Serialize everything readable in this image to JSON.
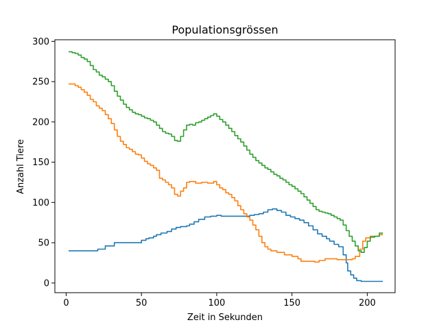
{
  "chart_data": {
    "type": "line",
    "title": "Populationsgrössen",
    "xlabel": "Zeit in Sekunden",
    "ylabel": "Anzahl Tiere",
    "xlim": [
      -7.5,
      218.5
    ],
    "ylim": [
      -12,
      302
    ],
    "xticks": [
      0,
      50,
      100,
      150,
      200
    ],
    "yticks": [
      0,
      50,
      100,
      150,
      200,
      250,
      300
    ],
    "grid": false,
    "series": [
      {
        "color": "#1f77b4",
        "points": [
          [
            2,
            40
          ],
          [
            10,
            40
          ],
          [
            20,
            40
          ],
          [
            21,
            42
          ],
          [
            25,
            42
          ],
          [
            26,
            46
          ],
          [
            30,
            46
          ],
          [
            32,
            50
          ],
          [
            40,
            50
          ],
          [
            48,
            50
          ],
          [
            50,
            53
          ],
          [
            53,
            55
          ],
          [
            55,
            56
          ],
          [
            58,
            58
          ],
          [
            60,
            60
          ],
          [
            63,
            62
          ],
          [
            67,
            64
          ],
          [
            70,
            67
          ],
          [
            73,
            69
          ],
          [
            76,
            70
          ],
          [
            80,
            71
          ],
          [
            82,
            73
          ],
          [
            85,
            76
          ],
          [
            88,
            79
          ],
          [
            92,
            82
          ],
          [
            96,
            83
          ],
          [
            100,
            84
          ],
          [
            103,
            83
          ],
          [
            106,
            83
          ],
          [
            110,
            83
          ],
          [
            114,
            83
          ],
          [
            118,
            83
          ],
          [
            122,
            84
          ],
          [
            125,
            85
          ],
          [
            128,
            86
          ],
          [
            131,
            88
          ],
          [
            134,
            91
          ],
          [
            137,
            92
          ],
          [
            140,
            90
          ],
          [
            143,
            88
          ],
          [
            146,
            84
          ],
          [
            149,
            82
          ],
          [
            152,
            80
          ],
          [
            155,
            78
          ],
          [
            158,
            75
          ],
          [
            161,
            71
          ],
          [
            164,
            66
          ],
          [
            167,
            61
          ],
          [
            170,
            58
          ],
          [
            173,
            55
          ],
          [
            175,
            52
          ],
          [
            178,
            48
          ],
          [
            181,
            45
          ],
          [
            184,
            35
          ],
          [
            186,
            25
          ],
          [
            187,
            15
          ],
          [
            189,
            10
          ],
          [
            191,
            6
          ],
          [
            193,
            3
          ],
          [
            196,
            2
          ],
          [
            200,
            2
          ],
          [
            205,
            2
          ],
          [
            210,
            2
          ]
        ]
      },
      {
        "color": "#ff7f0e",
        "points": [
          [
            2,
            247
          ],
          [
            6,
            245
          ],
          [
            8,
            243
          ],
          [
            10,
            240
          ],
          [
            12,
            237
          ],
          [
            14,
            233
          ],
          [
            16,
            228
          ],
          [
            18,
            225
          ],
          [
            20,
            220
          ],
          [
            22,
            217
          ],
          [
            24,
            214
          ],
          [
            26,
            209
          ],
          [
            28,
            204
          ],
          [
            30,
            198
          ],
          [
            32,
            190
          ],
          [
            34,
            182
          ],
          [
            36,
            176
          ],
          [
            38,
            172
          ],
          [
            40,
            168
          ],
          [
            42,
            166
          ],
          [
            44,
            163
          ],
          [
            46,
            160
          ],
          [
            48,
            159
          ],
          [
            50,
            155
          ],
          [
            52,
            151
          ],
          [
            54,
            148
          ],
          [
            56,
            146
          ],
          [
            58,
            143
          ],
          [
            60,
            140
          ],
          [
            62,
            130
          ],
          [
            64,
            128
          ],
          [
            66,
            125
          ],
          [
            68,
            122
          ],
          [
            70,
            118
          ],
          [
            72,
            110
          ],
          [
            74,
            108
          ],
          [
            76,
            114
          ],
          [
            78,
            118
          ],
          [
            80,
            125
          ],
          [
            82,
            126
          ],
          [
            86,
            124
          ],
          [
            90,
            125
          ],
          [
            94,
            124
          ],
          [
            98,
            126
          ],
          [
            100,
            122
          ],
          [
            102,
            118
          ],
          [
            104,
            116
          ],
          [
            106,
            112
          ],
          [
            108,
            110
          ],
          [
            110,
            106
          ],
          [
            112,
            102
          ],
          [
            114,
            96
          ],
          [
            116,
            91
          ],
          [
            118,
            86
          ],
          [
            120,
            82
          ],
          [
            122,
            78
          ],
          [
            124,
            72
          ],
          [
            126,
            66
          ],
          [
            128,
            58
          ],
          [
            130,
            50
          ],
          [
            132,
            45
          ],
          [
            134,
            42
          ],
          [
            136,
            40
          ],
          [
            140,
            38
          ],
          [
            145,
            35
          ],
          [
            150,
            33
          ],
          [
            152,
            33
          ],
          [
            154,
            30
          ],
          [
            156,
            27
          ],
          [
            160,
            27
          ],
          [
            165,
            26
          ],
          [
            168,
            28
          ],
          [
            172,
            30
          ],
          [
            176,
            30
          ],
          [
            180,
            29
          ],
          [
            186,
            29
          ],
          [
            190,
            30
          ],
          [
            192,
            33
          ],
          [
            195,
            42
          ],
          [
            197,
            52
          ],
          [
            199,
            56
          ],
          [
            202,
            58
          ],
          [
            205,
            58
          ],
          [
            208,
            60
          ],
          [
            210,
            61
          ]
        ]
      },
      {
        "color": "#2ca02c",
        "points": [
          [
            2,
            287
          ],
          [
            4,
            286
          ],
          [
            6,
            285
          ],
          [
            8,
            283
          ],
          [
            10,
            280
          ],
          [
            12,
            278
          ],
          [
            14,
            275
          ],
          [
            16,
            270
          ],
          [
            18,
            265
          ],
          [
            20,
            262
          ],
          [
            22,
            258
          ],
          [
            24,
            256
          ],
          [
            26,
            253
          ],
          [
            28,
            250
          ],
          [
            30,
            245
          ],
          [
            32,
            238
          ],
          [
            34,
            232
          ],
          [
            36,
            227
          ],
          [
            38,
            222
          ],
          [
            40,
            218
          ],
          [
            42,
            215
          ],
          [
            44,
            212
          ],
          [
            46,
            210
          ],
          [
            48,
            209
          ],
          [
            50,
            207
          ],
          [
            52,
            205
          ],
          [
            54,
            204
          ],
          [
            56,
            202
          ],
          [
            58,
            200
          ],
          [
            60,
            196
          ],
          [
            62,
            192
          ],
          [
            64,
            188
          ],
          [
            66,
            186
          ],
          [
            68,
            185
          ],
          [
            70,
            182
          ],
          [
            72,
            177
          ],
          [
            74,
            176
          ],
          [
            76,
            182
          ],
          [
            78,
            190
          ],
          [
            80,
            196
          ],
          [
            82,
            197
          ],
          [
            84,
            196
          ],
          [
            86,
            199
          ],
          [
            88,
            200
          ],
          [
            90,
            202
          ],
          [
            92,
            204
          ],
          [
            94,
            206
          ],
          [
            96,
            208
          ],
          [
            98,
            210
          ],
          [
            100,
            207
          ],
          [
            102,
            203
          ],
          [
            104,
            200
          ],
          [
            106,
            196
          ],
          [
            108,
            192
          ],
          [
            110,
            188
          ],
          [
            112,
            183
          ],
          [
            114,
            179
          ],
          [
            116,
            175
          ],
          [
            118,
            170
          ],
          [
            120,
            165
          ],
          [
            122,
            160
          ],
          [
            124,
            156
          ],
          [
            126,
            152
          ],
          [
            128,
            149
          ],
          [
            130,
            146
          ],
          [
            132,
            143
          ],
          [
            134,
            141
          ],
          [
            136,
            138
          ],
          [
            138,
            135
          ],
          [
            140,
            133
          ],
          [
            142,
            130
          ],
          [
            144,
            128
          ],
          [
            146,
            125
          ],
          [
            148,
            122
          ],
          [
            150,
            120
          ],
          [
            152,
            117
          ],
          [
            154,
            114
          ],
          [
            156,
            111
          ],
          [
            158,
            107
          ],
          [
            160,
            103
          ],
          [
            162,
            99
          ],
          [
            164,
            95
          ],
          [
            166,
            91
          ],
          [
            168,
            89
          ],
          [
            170,
            88
          ],
          [
            172,
            87
          ],
          [
            174,
            86
          ],
          [
            176,
            84
          ],
          [
            178,
            82
          ],
          [
            180,
            80
          ],
          [
            182,
            78
          ],
          [
            184,
            72
          ],
          [
            186,
            65
          ],
          [
            188,
            58
          ],
          [
            190,
            52
          ],
          [
            192,
            46
          ],
          [
            194,
            40
          ],
          [
            196,
            38
          ],
          [
            198,
            44
          ],
          [
            200,
            52
          ],
          [
            202,
            57
          ],
          [
            205,
            58
          ],
          [
            208,
            62
          ],
          [
            210,
            62
          ]
        ]
      }
    ]
  }
}
